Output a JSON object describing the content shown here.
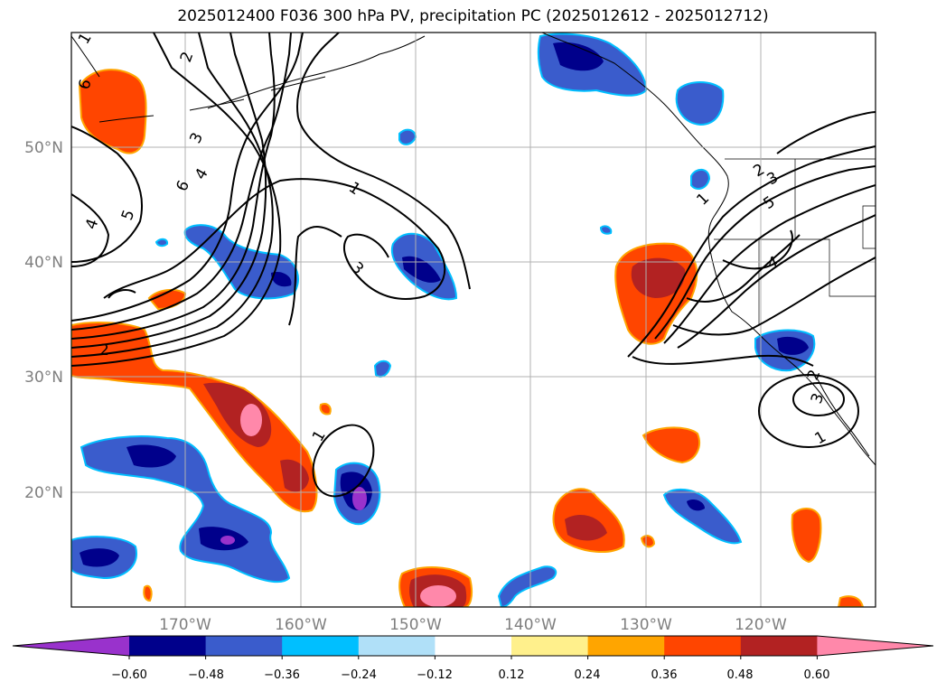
{
  "title": "2025012400 F036 300 hPa PV, precipitation PC (2025012612 - 2025012712)",
  "axes": {
    "lat_labels": [
      "50°N",
      "40°N",
      "30°N",
      "20°N"
    ],
    "lon_labels": [
      "170°W",
      "160°W",
      "150°W",
      "140°W",
      "130°W",
      "120°W"
    ]
  },
  "pv_contour_labels": [
    "1",
    "2",
    "2",
    "3",
    "3",
    "4",
    "4",
    "5",
    "5",
    "6",
    "6",
    "1",
    "2",
    "3",
    "1",
    "2",
    "3",
    "1",
    "1"
  ],
  "colorbar": {
    "ticks": [
      "−0.60",
      "−0.48",
      "−0.36",
      "−0.24",
      "−0.12",
      "0.12",
      "0.24",
      "0.36",
      "0.48",
      "0.60"
    ],
    "colors": [
      "#9932cc",
      "#00008b",
      "#3a5ccc",
      "#00bfff",
      "#b0e0f8",
      "#ffffff",
      "#fff08c",
      "#ffa500",
      "#ff4500",
      "#b22222",
      "#ff88aa"
    ]
  },
  "colors": {
    "coast": "#000000",
    "grid": "#b0b0b0",
    "contour": "#000000"
  }
}
